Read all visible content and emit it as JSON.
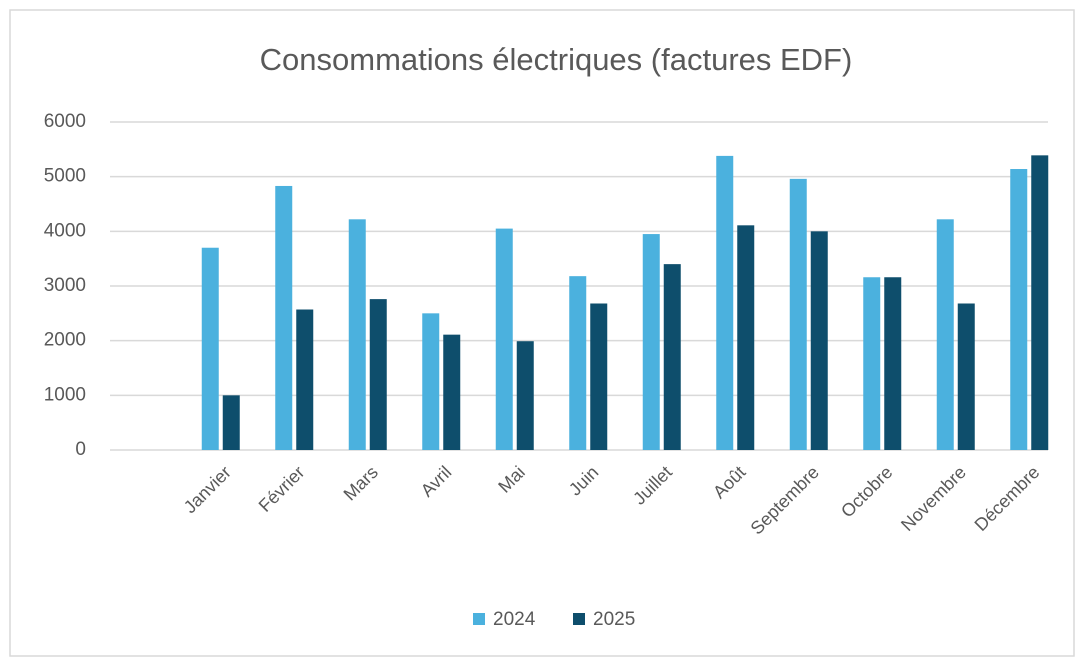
{
  "chart_data": {
    "type": "bar",
    "title": "Consommations électriques (factures EDF)",
    "categories": [
      "Janvier",
      "Février",
      "Mars",
      "Avril",
      "Mai",
      "Juin",
      "Juillet",
      "Août",
      "Septembre",
      "Octobre",
      "Novembre",
      "Décembre"
    ],
    "series": [
      {
        "name": "2024",
        "color": "#4bb1de",
        "values": [
          3700,
          4830,
          4220,
          2500,
          4050,
          3180,
          3950,
          5380,
          4960,
          3160,
          4220,
          5140
        ]
      },
      {
        "name": "2025",
        "color": "#0e4e6c",
        "values": [
          1000,
          2570,
          2760,
          2110,
          1990,
          2680,
          3400,
          4110,
          4000,
          3160,
          2680,
          5390
        ]
      }
    ],
    "ylim": [
      0,
      6000
    ],
    "yticks": [
      0,
      1000,
      2000,
      3000,
      4000,
      5000,
      6000
    ],
    "grid": true,
    "legend": "bottom"
  }
}
